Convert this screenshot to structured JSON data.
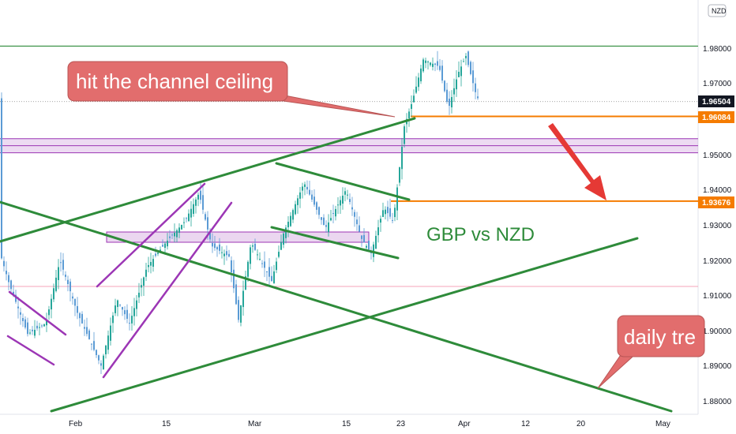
{
  "chart_data": {
    "type": "candlestick",
    "currency_badge": "NZD",
    "annotation_main": "GBP vs NZD",
    "callout_ceiling": "hit the channel ceiling",
    "callout_daily": "daily tre",
    "y_ticks": [
      "1.98000",
      "1.97000",
      "1.95000",
      "1.94000",
      "1.93000",
      "1.92000",
      "1.91000",
      "1.90000",
      "1.89000",
      "1.88000"
    ],
    "x_ticks": [
      "Feb",
      "15",
      "Mar",
      "15",
      "23",
      "Apr",
      "12",
      "20",
      "May"
    ],
    "price_labels": [
      {
        "value": "1.96504",
        "bg": "#131722",
        "fg": "#ffffff"
      },
      {
        "value": "1.96084",
        "bg": "#f57c00",
        "fg": "#ffffff"
      },
      {
        "value": "1.93676",
        "bg": "#f57c00",
        "fg": "#ffffff"
      }
    ],
    "levels": {
      "top_resistance": 1.9808,
      "current": 1.96504,
      "orange_high": 1.96084,
      "orange_low": 1.93676,
      "zone_top": 1.9545,
      "zone_mid": 1.9525,
      "zone_bottom": 1.9505,
      "pink_line": 1.9125
    },
    "colors": {
      "up": "#26a69a",
      "down": "#5b9bd5",
      "trend": "#2e8b3a",
      "channel": "#9c36b5",
      "orange": "#f57c00",
      "callout": "#e26d6d"
    }
  }
}
